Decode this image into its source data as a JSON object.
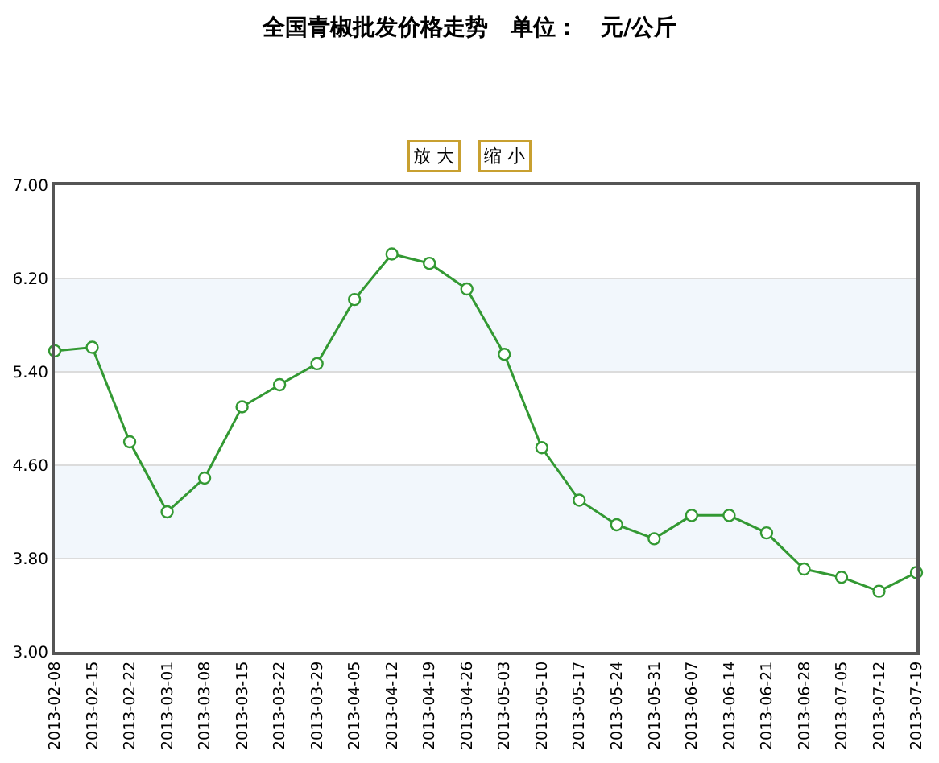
{
  "chart_data": {
    "type": "line",
    "title": "全国青椒批发价格走势　单位：　元/公斤",
    "annotations": [
      "放 大",
      "缩 小"
    ],
    "categories": [
      "2013-02-08",
      "2013-02-15",
      "2013-02-22",
      "2013-03-01",
      "2013-03-08",
      "2013-03-15",
      "2013-03-22",
      "2013-03-29",
      "2013-04-05",
      "2013-04-12",
      "2013-04-19",
      "2013-04-26",
      "2013-05-03",
      "2013-05-10",
      "2013-05-17",
      "2013-05-24",
      "2013-05-31",
      "2013-06-07",
      "2013-06-14",
      "2013-06-21",
      "2013-06-28",
      "2013-07-05",
      "2013-07-12",
      "2013-07-19"
    ],
    "series": [
      {
        "color": "#339933",
        "values": [
          5.58,
          5.61,
          4.8,
          4.2,
          4.49,
          5.1,
          5.29,
          5.47,
          6.02,
          6.41,
          6.33,
          6.11,
          5.55,
          4.75,
          4.3,
          4.09,
          3.97,
          4.17,
          4.17,
          4.02,
          3.71,
          3.64,
          3.52,
          3.68
        ]
      }
    ],
    "ylim": [
      3.0,
      7.0
    ],
    "yticks": [
      {
        "value": 3.0,
        "label": "3.00"
      },
      {
        "value": 3.8,
        "label": "3.80"
      },
      {
        "value": 4.6,
        "label": "4.60"
      },
      {
        "value": 5.4,
        "label": "5.40"
      },
      {
        "value": 6.2,
        "label": "6.20"
      },
      {
        "value": 7.0,
        "label": "7.00"
      }
    ],
    "bands": [
      {
        "axis": "y",
        "from": 3.8,
        "to": 4.6,
        "color": "#f2f7fc"
      },
      {
        "axis": "y",
        "from": 5.4,
        "to": 6.2,
        "color": "#f2f7fc"
      }
    ],
    "grid": "y",
    "marker": "circle",
    "line_style": "solid",
    "legend": false
  }
}
